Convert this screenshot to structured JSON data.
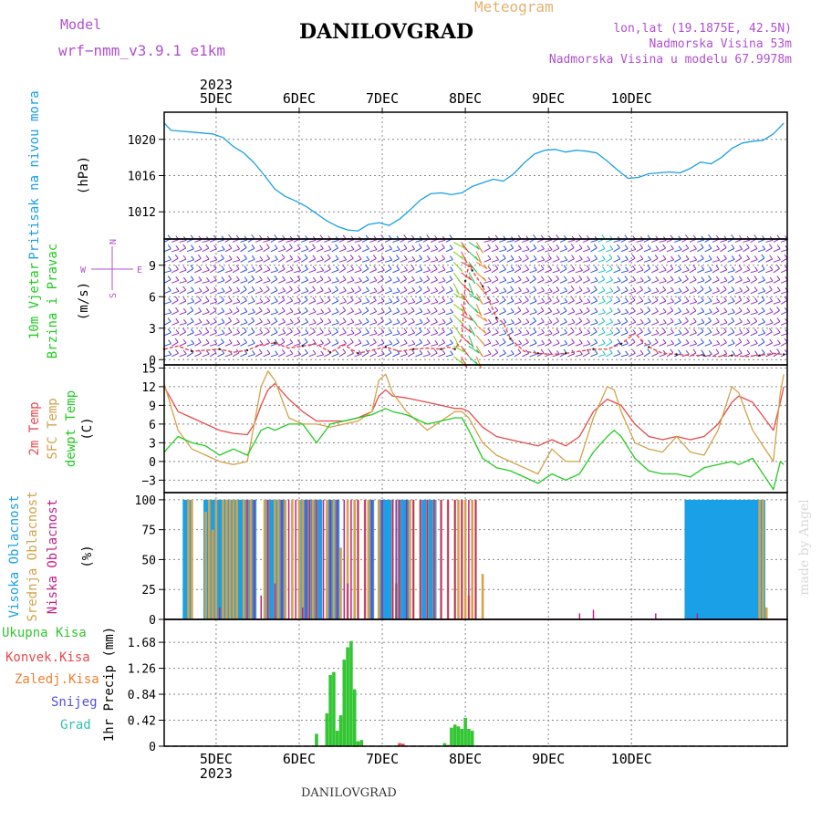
{
  "header": {
    "model_label": "Model",
    "model_name": "wrf−nmm_v3.9.1  e1km",
    "title": "DANILOVGRAD",
    "meteogram": "Meteogram",
    "lonlat": "lon,lat (19.1875E, 42.5N)",
    "visina": "Nadmorska Visina 53m",
    "visina_model": "Nadmorska Visina u modelu 67.9978m",
    "footer": "DANILOVGRAD",
    "watermark": "made by Angel"
  },
  "colors": {
    "pressure": "#1aa0e6",
    "temp2m": "#e84a4a",
    "sfc": "#d4a24a",
    "dewpt": "#22cc22",
    "visoka": "#1aa0e6",
    "srednja": "#d4a24a",
    "niska": "#c0208a",
    "ukupna": "#33c633",
    "konvek": "#e84a4a",
    "zaledj": "#f08030",
    "snijeg": "#5050e0",
    "grad": "#30c0b0",
    "magenta": "#b050d0"
  },
  "time_axis": {
    "top_year": "2023",
    "bottom_year": "2023",
    "days": [
      "5DEC",
      "6DEC",
      "7DEC",
      "8DEC",
      "9DEC",
      "10DEC"
    ]
  },
  "chart_data": [
    {
      "type": "line",
      "panel": "pressure",
      "ylabel": "Pritisak na nivou mora",
      "unit": "(hPa)",
      "yticks": [
        "1012",
        "1016",
        "1020"
      ],
      "ylim": [
        1009,
        1023
      ],
      "x_hours": [
        0,
        2,
        5,
        8,
        11,
        14,
        17,
        20,
        23,
        26,
        29,
        32,
        35,
        38,
        41,
        44,
        47,
        50,
        53,
        56,
        59,
        62,
        65,
        68,
        71,
        74,
        77,
        80,
        83,
        86,
        89,
        92,
        95,
        98,
        101,
        104,
        107,
        110,
        113,
        116,
        119,
        122,
        125,
        128,
        131,
        134,
        137,
        140,
        143,
        146,
        149,
        152,
        155,
        158,
        161,
        164,
        167,
        170,
        173,
        176,
        179
      ],
      "values": [
        1021.8,
        1021.0,
        1020.9,
        1020.8,
        1020.7,
        1020.6,
        1020.2,
        1019.2,
        1018.5,
        1017.4,
        1016.0,
        1014.5,
        1013.7,
        1013.2,
        1012.6,
        1011.8,
        1011.0,
        1010.4,
        1010.0,
        1009.9,
        1010.6,
        1010.8,
        1010.5,
        1011.2,
        1012.2,
        1013.3,
        1014.0,
        1014.1,
        1013.9,
        1014.1,
        1014.8,
        1015.2,
        1015.6,
        1015.4,
        1016.2,
        1017.4,
        1018.4,
        1018.8,
        1018.9,
        1018.6,
        1018.8,
        1018.7,
        1018.5,
        1017.6,
        1016.6,
        1015.7,
        1015.8,
        1016.2,
        1016.3,
        1016.4,
        1016.3,
        1016.8,
        1017.5,
        1017.3,
        1018.0,
        1019.0,
        1019.6,
        1019.8,
        1019.9,
        1020.6,
        1021.8
      ]
    },
    {
      "type": "line",
      "panel": "wind",
      "ylabel": "10m Vjetar Brzina i Pravac",
      "unit": "(m/s)",
      "compass": "N / E / S / W",
      "yticks": [
        "0",
        "3",
        "6",
        "9"
      ],
      "ylim": [
        -0.5,
        11.5
      ],
      "x_hours": [
        0,
        4,
        8,
        12,
        16,
        20,
        24,
        28,
        32,
        36,
        40,
        44,
        48,
        52,
        56,
        60,
        64,
        68,
        72,
        76,
        80,
        82,
        84,
        86,
        87,
        88,
        89,
        90,
        92,
        94,
        96,
        98,
        100,
        104,
        108,
        112,
        116,
        120,
        124,
        128,
        132,
        136,
        140,
        144,
        148,
        152,
        156,
        160,
        164,
        168,
        172,
        176,
        179
      ],
      "values": [
        1.0,
        1.3,
        0.8,
        0.9,
        1.0,
        0.7,
        0.9,
        1.4,
        1.6,
        1.1,
        1.3,
        1.5,
        0.7,
        1.4,
        0.6,
        0.9,
        1.2,
        0.8,
        1.0,
        1.1,
        1.0,
        1.2,
        1.0,
        2.0,
        7.5,
        9.0,
        8.5,
        8.0,
        7.0,
        5.5,
        4.0,
        3.5,
        2.0,
        0.8,
        0.6,
        0.5,
        0.6,
        0.8,
        1.0,
        1.0,
        1.5,
        2.5,
        1.2,
        0.6,
        0.5,
        0.4,
        0.4,
        0.3,
        0.4,
        0.3,
        0.4,
        0.6,
        0.5
      ]
    },
    {
      "type": "line",
      "panel": "temperature",
      "unit": "(C)",
      "yticks": [
        "−3",
        "0",
        "3",
        "6",
        "9",
        "12",
        "15"
      ],
      "ylim": [
        -5,
        15.5
      ],
      "x_hours": [
        0,
        4,
        8,
        12,
        16,
        20,
        24,
        26,
        28,
        30,
        32,
        36,
        40,
        44,
        48,
        52,
        56,
        60,
        62,
        64,
        66,
        70,
        76,
        80,
        84,
        86,
        88,
        92,
        96,
        100,
        104,
        108,
        112,
        116,
        120,
        124,
        128,
        130,
        132,
        136,
        140,
        144,
        148,
        152,
        156,
        160,
        164,
        166,
        170,
        176,
        178,
        179
      ],
      "series": [
        {
          "name": "2m Temp",
          "color_key": "temp2m",
          "values": [
            12.0,
            8.0,
            7.0,
            6.0,
            5.0,
            4.5,
            4.3,
            6.0,
            9.0,
            11.5,
            12.5,
            10.0,
            8.0,
            6.5,
            6.5,
            6.5,
            7.0,
            8.0,
            10.5,
            11.5,
            10.5,
            10.2,
            9.5,
            9.0,
            8.5,
            8.5,
            8.0,
            5.5,
            4.0,
            3.5,
            3.0,
            2.5,
            3.5,
            2.5,
            4.0,
            8.0,
            10.0,
            9.5,
            9.0,
            6.0,
            4.0,
            3.5,
            4.0,
            3.5,
            4.0,
            6.0,
            9.5,
            10.5,
            9.5,
            5.0,
            9.5,
            12.0
          ]
        },
        {
          "name": "SFC Temp",
          "color_key": "sfc",
          "values": [
            12.5,
            5.0,
            2.0,
            1.0,
            0.0,
            -0.5,
            0.0,
            6.0,
            12.0,
            14.5,
            13.0,
            7.0,
            6.0,
            6.0,
            5.5,
            6.0,
            6.5,
            8.0,
            13.0,
            14.0,
            11.0,
            8.0,
            5.0,
            6.5,
            8.0,
            8.0,
            7.0,
            3.0,
            1.0,
            0.0,
            -1.0,
            -2.0,
            2.0,
            0.0,
            0.0,
            7.0,
            12.0,
            11.5,
            8.0,
            3.0,
            2.0,
            1.5,
            4.0,
            1.5,
            1.0,
            5.0,
            12.0,
            11.0,
            5.0,
            0.0,
            11.0,
            14.0
          ]
        },
        {
          "name": "dewpt Temp",
          "color_key": "dewpt",
          "values": [
            1.5,
            4.0,
            3.0,
            2.5,
            1.0,
            2.0,
            1.0,
            3.0,
            5.0,
            5.5,
            5.0,
            6.0,
            6.0,
            3.0,
            6.0,
            6.5,
            7.0,
            7.5,
            8.0,
            8.5,
            8.0,
            7.5,
            6.0,
            6.5,
            7.0,
            7.0,
            5.0,
            0.5,
            -1.0,
            -1.5,
            -2.5,
            -3.5,
            -2.0,
            -3.0,
            -2.0,
            1.5,
            4.0,
            5.0,
            4.0,
            0.5,
            -1.5,
            -2.0,
            -2.0,
            -2.5,
            -1.0,
            -0.5,
            0.0,
            -0.5,
            0.5,
            -4.5,
            0.0,
            -0.5
          ]
        }
      ]
    },
    {
      "type": "bar",
      "panel": "clouds",
      "unit": "(%)",
      "yticks": [
        "0",
        "25",
        "50",
        "75",
        "100"
      ],
      "ylim": [
        0,
        106
      ],
      "series": [
        {
          "name": "Visoka Oblacnost",
          "color_key": "visoka",
          "x_hours": [
            6,
            7,
            12,
            13,
            14,
            15,
            16,
            17,
            18,
            19,
            20,
            21,
            22,
            23,
            24,
            25,
            26,
            30,
            31,
            32,
            33,
            34,
            40,
            41,
            42,
            43,
            44,
            45,
            48,
            49,
            50,
            60,
            63,
            64,
            65,
            68,
            69,
            70,
            75,
            76,
            77,
            78,
            151,
            152,
            153,
            154,
            155,
            156,
            157,
            158,
            159,
            160,
            161,
            162,
            163,
            164,
            165,
            166,
            167,
            168,
            169,
            170,
            171,
            172,
            173
          ],
          "values": [
            100,
            100,
            100,
            100,
            100,
            100,
            100,
            100,
            100,
            100,
            100,
            100,
            100,
            100,
            100,
            100,
            100,
            100,
            100,
            100,
            100,
            100,
            100,
            100,
            100,
            100,
            100,
            100,
            100,
            100,
            100,
            100,
            100,
            100,
            100,
            100,
            100,
            100,
            100,
            100,
            100,
            100,
            100,
            100,
            100,
            100,
            100,
            100,
            100,
            100,
            100,
            100,
            100,
            100,
            100,
            100,
            100,
            100,
            100,
            100,
            100,
            100,
            100,
            100,
            100
          ]
        },
        {
          "name": "Srednja Oblacnost",
          "color_key": "srednja",
          "x_hours": [
            7,
            8,
            12,
            13,
            14,
            15,
            17,
            18,
            19,
            20,
            21,
            23,
            24,
            25,
            29,
            30,
            32,
            33,
            35,
            37,
            39,
            40,
            42,
            43,
            44,
            47,
            49,
            51,
            53,
            55,
            56,
            58,
            59,
            62,
            66,
            67,
            68,
            71,
            72,
            74,
            76,
            78,
            80,
            82,
            84,
            85,
            86,
            87,
            88,
            89,
            90,
            92,
            172,
            173,
            174
          ],
          "values": [
            100,
            100,
            90,
            100,
            75,
            100,
            100,
            100,
            100,
            100,
            100,
            100,
            100,
            100,
            100,
            100,
            100,
            100,
            100,
            100,
            100,
            100,
            100,
            100,
            100,
            100,
            100,
            60,
            100,
            100,
            100,
            100,
            100,
            100,
            100,
            30,
            100,
            100,
            100,
            100,
            100,
            100,
            100,
            100,
            100,
            100,
            100,
            100,
            20,
            100,
            100,
            38,
            100,
            100,
            10
          ]
        },
        {
          "name": "Niska Oblacnost",
          "color_key": "niska",
          "x_hours": [
            16,
            24,
            26,
            28,
            30,
            32,
            34,
            36,
            38,
            40,
            41,
            42,
            44,
            46,
            48,
            50,
            52,
            53,
            54,
            56,
            58,
            60,
            63,
            66,
            67,
            68,
            70,
            72,
            74,
            76,
            78,
            80,
            82,
            84,
            86,
            88,
            90,
            120,
            124,
            142,
            154
          ],
          "values": [
            10,
            100,
            100,
            20,
            100,
            30,
            100,
            100,
            100,
            10,
            100,
            100,
            100,
            100,
            100,
            100,
            100,
            30,
            100,
            100,
            100,
            100,
            100,
            100,
            100,
            100,
            100,
            100,
            100,
            100,
            100,
            100,
            100,
            100,
            100,
            100,
            100,
            5,
            8,
            5,
            5
          ]
        }
      ]
    },
    {
      "type": "bar",
      "panel": "precip",
      "unit": "1hr Precip (mm)",
      "yticks": [
        "0",
        "0.42",
        "0.84",
        "1.26",
        "1.68"
      ],
      "ylim": [
        0,
        2.05
      ],
      "series": [
        {
          "name": "Ukupna Kisa",
          "color_key": "ukupna",
          "x_hours": [
            44,
            47,
            48,
            49,
            50,
            51,
            52,
            53,
            54,
            55,
            56,
            57,
            81,
            83,
            84,
            85,
            86,
            87,
            88,
            89
          ],
          "values": [
            0.2,
            0.53,
            1.15,
            1.2,
            0.25,
            0.5,
            1.4,
            1.6,
            1.7,
            0.92,
            0.08,
            0.1,
            0.05,
            0.3,
            0.35,
            0.32,
            0.28,
            0.46,
            0.28,
            0.25
          ]
        },
        {
          "name": "Konvek.Kisa",
          "color_key": "konvek",
          "x_hours": [
            68,
            69,
            82
          ],
          "values": [
            0.05,
            0.04,
            0.02
          ]
        },
        {
          "name": "Zaledj.Kisa",
          "color_key": "zaledj",
          "x_hours": [],
          "values": []
        },
        {
          "name": "Snijeg",
          "color_key": "snijeg",
          "x_hours": [],
          "values": []
        },
        {
          "name": "Grad",
          "color_key": "grad",
          "x_hours": [],
          "values": []
        }
      ]
    }
  ],
  "axis_labels": {
    "pressure": "Pritisak na nivou mora",
    "pressure_unit": "(hPa)",
    "wind_a": "10m Vjetar",
    "wind_b": "Brzina i Pravac",
    "wind_unit": "(m/s)",
    "compass_w": "W",
    "compass_e": "E",
    "compass_n": "N",
    "compass_s": "S",
    "temp2m": "2m Temp",
    "sfc": "SFC Temp",
    "dewpt": "dewpt Temp",
    "temp_unit": "(C)",
    "visoka": "Visoka Oblacnost",
    "srednja": "Srednja Oblacnost",
    "niska": "Niska Oblacnost",
    "cloud_unit": "(%)",
    "ukupna": "Ukupna Kisa",
    "konvek": "Konvek.Kisa",
    "zaledj": "Zaledj.Kisa",
    "snijeg": "Snijeg",
    "grad": "Grad",
    "precip_unit": "1hr Precip (mm)"
  }
}
